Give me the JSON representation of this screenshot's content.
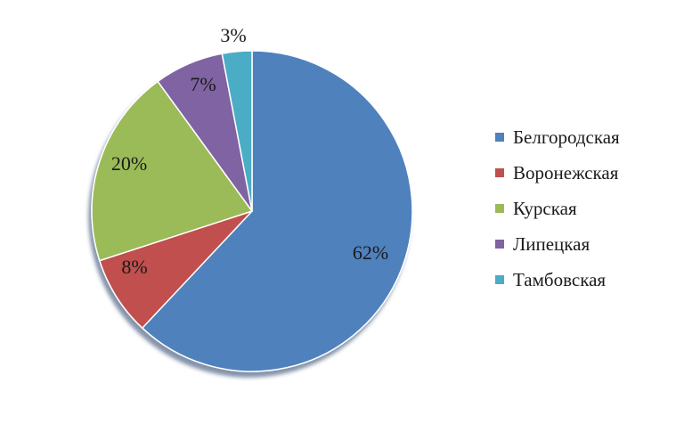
{
  "chart_data": {
    "type": "pie",
    "categories": [
      "Белгородская",
      "Воронежская",
      "Курская",
      "Липецкая",
      "Тамбовская"
    ],
    "values": [
      62,
      8,
      20,
      7,
      3
    ],
    "data_labels": [
      "62%",
      "8%",
      "20%",
      "7%",
      "3%"
    ],
    "colors": [
      "#4f81bd",
      "#c0504d",
      "#9bbb59",
      "#8064a2",
      "#4bacc6"
    ],
    "start_angle": "12 o'clock",
    "direction": "clockwise",
    "legend": "right"
  }
}
